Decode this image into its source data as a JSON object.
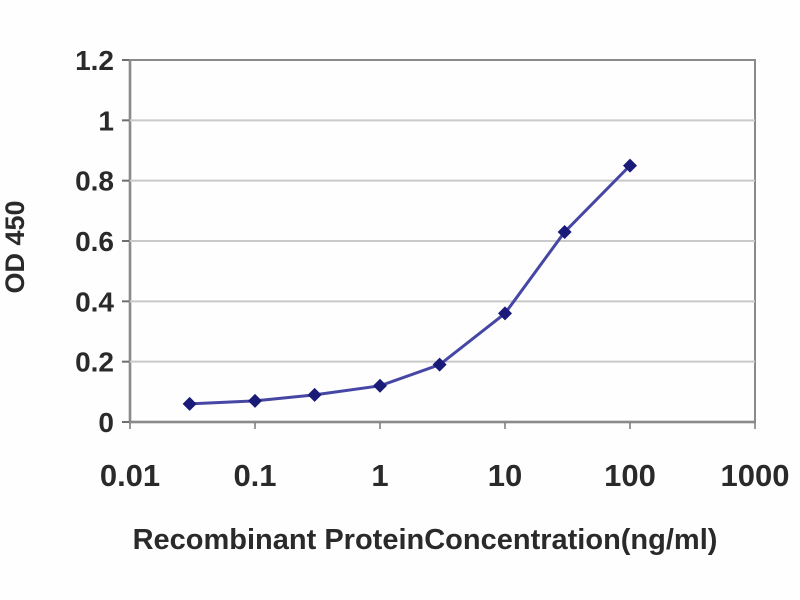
{
  "chart_data": {
    "type": "line",
    "title": "",
    "xlabel": "Recombinant ProteinConcentration(ng/ml)",
    "ylabel": "OD 450",
    "x_scale": "log",
    "xlim": [
      0.01,
      1000
    ],
    "ylim": [
      0,
      1.2
    ],
    "x_ticks": [
      0.01,
      0.1,
      1,
      10,
      100,
      1000
    ],
    "x_tick_labels": [
      "0.01",
      "0.1",
      "1",
      "10",
      "100",
      "1000"
    ],
    "y_ticks": [
      0,
      0.2,
      0.4,
      0.6,
      0.8,
      1,
      1.2
    ],
    "y_tick_labels": [
      "0",
      "0.2",
      "0.4",
      "0.6",
      "0.8",
      "1",
      "1.2"
    ],
    "grid": "horizontal",
    "legend": "none",
    "marker": "diamond",
    "series": [
      {
        "name": "OD450",
        "x": [
          0.03,
          0.1,
          0.3,
          1,
          3,
          10,
          30,
          100
        ],
        "y": [
          0.06,
          0.07,
          0.09,
          0.12,
          0.19,
          0.36,
          0.63,
          0.85
        ]
      }
    ],
    "colors": {
      "line": "#4646a5",
      "marker": "#1a1a78",
      "grid": "#c9c9c9",
      "border": "#8a8a8a",
      "axis": "#6e6e6e",
      "tick": "#9a9a9a",
      "text": "#2a2a2a",
      "background": "#ffffff"
    }
  }
}
